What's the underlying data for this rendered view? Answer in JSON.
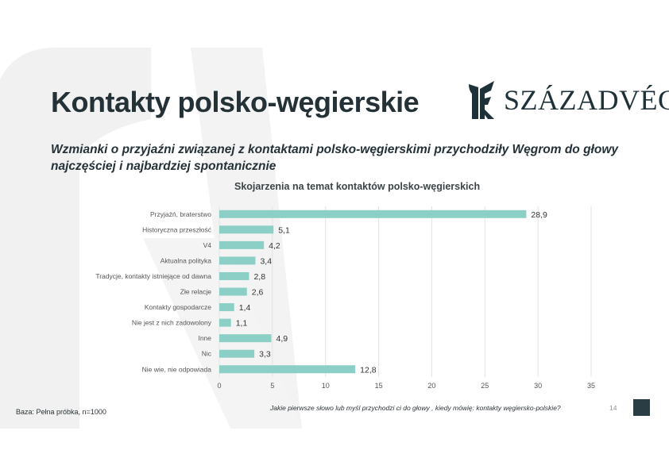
{
  "header": {
    "title": "Kontakty polsko-węgierskie",
    "logo_text": "SZÁZADVÉG"
  },
  "subtitle": "Wzmianki o przyjaźni związanej z kontaktami polsko-węgierskimi przychodziły Węgrom do głowy najczęściej i najbardziej spontanicznie",
  "chart_data": {
    "type": "bar",
    "orientation": "horizontal",
    "title": "Skojarzenia na temat kontaktów polsko-węgierskich",
    "categories": [
      "Przyjaźń, braterstwo",
      "Historyczna przeszłość",
      "V4",
      "Aktualna polityka",
      "Tradycje, kontakty istniejące od dawna",
      "Złe relacje",
      "Kontakty gospodarcze",
      "Nie jest z nich zadowolony",
      "Inne",
      "Nic",
      "Nie wie, nie odpowiada"
    ],
    "values": [
      28.9,
      5.1,
      4.2,
      3.4,
      2.8,
      2.6,
      1.4,
      1.1,
      4.9,
      3.3,
      12.8
    ],
    "value_labels": [
      "28,9",
      "5,1",
      "4,2",
      "3,4",
      "2,8",
      "2,6",
      "1,4",
      "1,1",
      "4,9",
      "3,3",
      "12,8"
    ],
    "xlim": [
      0,
      35
    ],
    "xticks": [
      0,
      5,
      10,
      15,
      20,
      25,
      30,
      35
    ],
    "grid": true,
    "bar_color": "#8ccfc6"
  },
  "footer": {
    "base": "Baza: Pełna próbka, n=1000",
    "question": "Jakie pierwsze słowo lub myśl przychodzi ci do głowy , kiedy mówię: kontakty węgiersko-polskie?",
    "page_number": "14"
  },
  "colors": {
    "accent": "#2a3d44",
    "bar": "#8ccfc6"
  }
}
